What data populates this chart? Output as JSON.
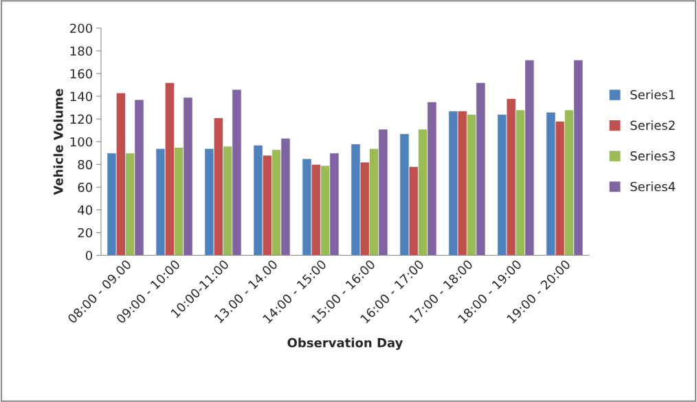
{
  "chart_data": {
    "type": "bar",
    "xlabel": "Observation Day",
    "ylabel": "Vehicle Volume",
    "categories": [
      "08:00 - 09.00",
      "09:00 - 10:00",
      "10:00-11:00",
      "13.00 - 14.00",
      "14:00 - 15:00",
      "15:00 - 16:00",
      "16:00 - 17:00",
      "17:00 - 18:00",
      "18:00 - 19:00",
      "19:00 - 20:00"
    ],
    "series": [
      {
        "name": "Series1",
        "color": "#4f81bd",
        "values": [
          90,
          94,
          94,
          97,
          85,
          98,
          107,
          127,
          124,
          126
        ]
      },
      {
        "name": "Series2",
        "color": "#c0504d",
        "values": [
          143,
          152,
          121,
          88,
          80,
          82,
          78,
          127,
          138,
          118
        ]
      },
      {
        "name": "Series3",
        "color": "#9bbb59",
        "values": [
          90,
          95,
          96,
          93,
          79,
          94,
          111,
          124,
          128,
          128
        ]
      },
      {
        "name": "Series4",
        "color": "#8064a2",
        "values": [
          137,
          139,
          146,
          103,
          90,
          111,
          135,
          152,
          172,
          172
        ]
      }
    ],
    "ylim": [
      0,
      200
    ],
    "yticks": [
      0,
      20,
      40,
      60,
      80,
      100,
      120,
      140,
      160,
      180,
      200
    ],
    "grid": false,
    "legend": "right"
  }
}
